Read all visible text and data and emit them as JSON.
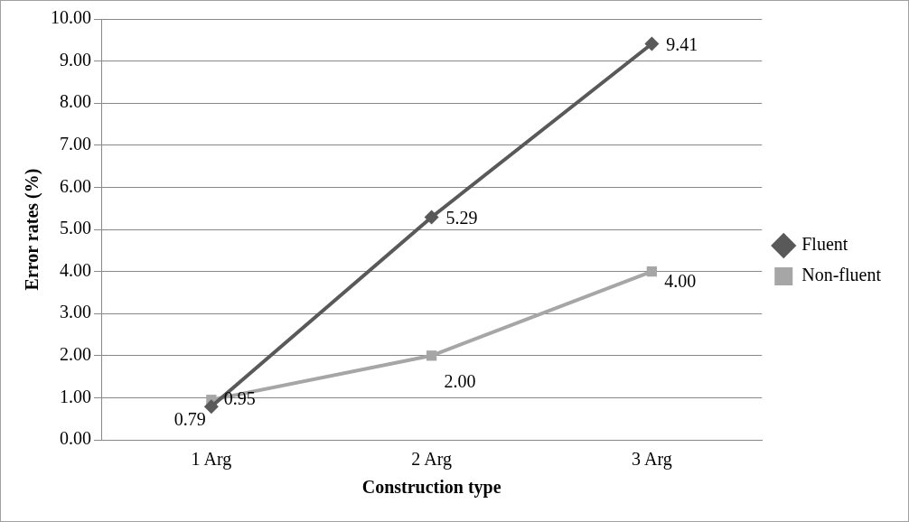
{
  "chart_data": {
    "type": "line",
    "xlabel": "Construction type",
    "ylabel": "Error rates (%)",
    "categories": [
      "1 Arg",
      "2 Arg",
      "3 Arg"
    ],
    "series": [
      {
        "name": "Fluent",
        "color": "#595959",
        "marker": "diamond",
        "values": [
          0.79,
          5.29,
          9.41
        ],
        "value_labels": [
          "0.79",
          "5.29",
          "9.41"
        ]
      },
      {
        "name": "Non-fluent",
        "color": "#a6a6a6",
        "marker": "square",
        "values": [
          0.95,
          2.0,
          4.0
        ],
        "value_labels": [
          "0.95",
          "2.00",
          "4.00"
        ]
      }
    ],
    "ylim": [
      0,
      10
    ],
    "yticks": [
      {
        "value": 0,
        "label": "0.00"
      },
      {
        "value": 1,
        "label": "1.00"
      },
      {
        "value": 2,
        "label": "2.00"
      },
      {
        "value": 3,
        "label": "3.00"
      },
      {
        "value": 4,
        "label": "4.00"
      },
      {
        "value": 5,
        "label": "5.00"
      },
      {
        "value": 6,
        "label": "6.00"
      },
      {
        "value": 7,
        "label": "7.00"
      },
      {
        "value": 8,
        "label": "8.00"
      },
      {
        "value": 9,
        "label": "9.00"
      },
      {
        "value": 10,
        "label": "10.00"
      }
    ],
    "grid": "y",
    "legend": "right"
  }
}
